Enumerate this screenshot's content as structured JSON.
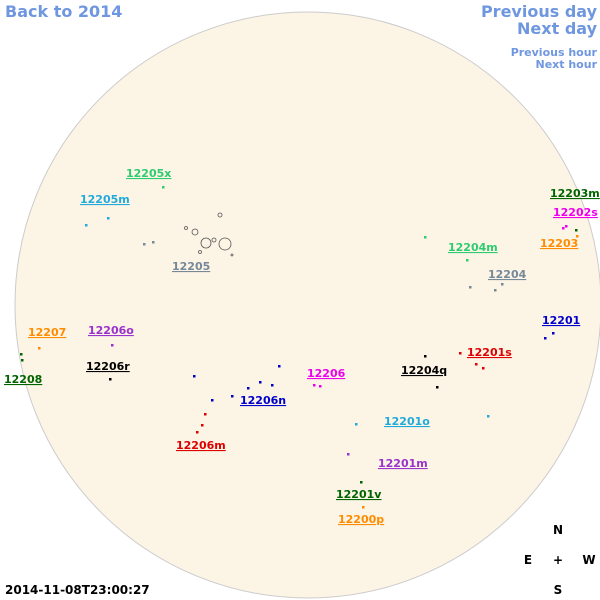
{
  "nav": {
    "back": "Back to 2014",
    "previous_day": "Previous day",
    "next_day": "Next day",
    "previous_hour": "Previous hour",
    "next_hour": "Next hour"
  },
  "regions": [
    {
      "label": "12205x",
      "color": "#2ecc71"
    },
    {
      "label": "12205m",
      "color": "#22aadd"
    },
    {
      "label": "12205",
      "color": "#778899"
    },
    {
      "label": "12203m",
      "color": "#006400"
    },
    {
      "label": "12202s",
      "color": "#ee00ee"
    },
    {
      "label": "12203",
      "color": "#ff8c00"
    },
    {
      "label": "12204m",
      "color": "#2ecc71"
    },
    {
      "label": "12204",
      "color": "#778899"
    },
    {
      "label": "12201",
      "color": "#0000cc"
    },
    {
      "label": "12201s",
      "color": "#dd0000"
    },
    {
      "label": "12207",
      "color": "#ff8c00"
    },
    {
      "label": "12206o",
      "color": "#9933cc"
    },
    {
      "label": "12208",
      "color": "#006400"
    },
    {
      "label": "12206r",
      "color": "#000000"
    },
    {
      "label": "12204q",
      "color": "#000000"
    },
    {
      "label": "12206",
      "color": "#ee00ee"
    },
    {
      "label": "12206n",
      "color": "#0000cc"
    },
    {
      "label": "12206m",
      "color": "#dd0000"
    },
    {
      "label": "12201o",
      "color": "#22aadd"
    },
    {
      "label": "12201m",
      "color": "#9933cc"
    },
    {
      "label": "12201v",
      "color": "#006400"
    },
    {
      "label": "12200p",
      "color": "#ff8c00"
    }
  ],
  "compass": {
    "north": "N",
    "east": "E",
    "center": "+",
    "west": "W",
    "south": "S"
  },
  "timestamp": "2014-11-08T23:00:27"
}
